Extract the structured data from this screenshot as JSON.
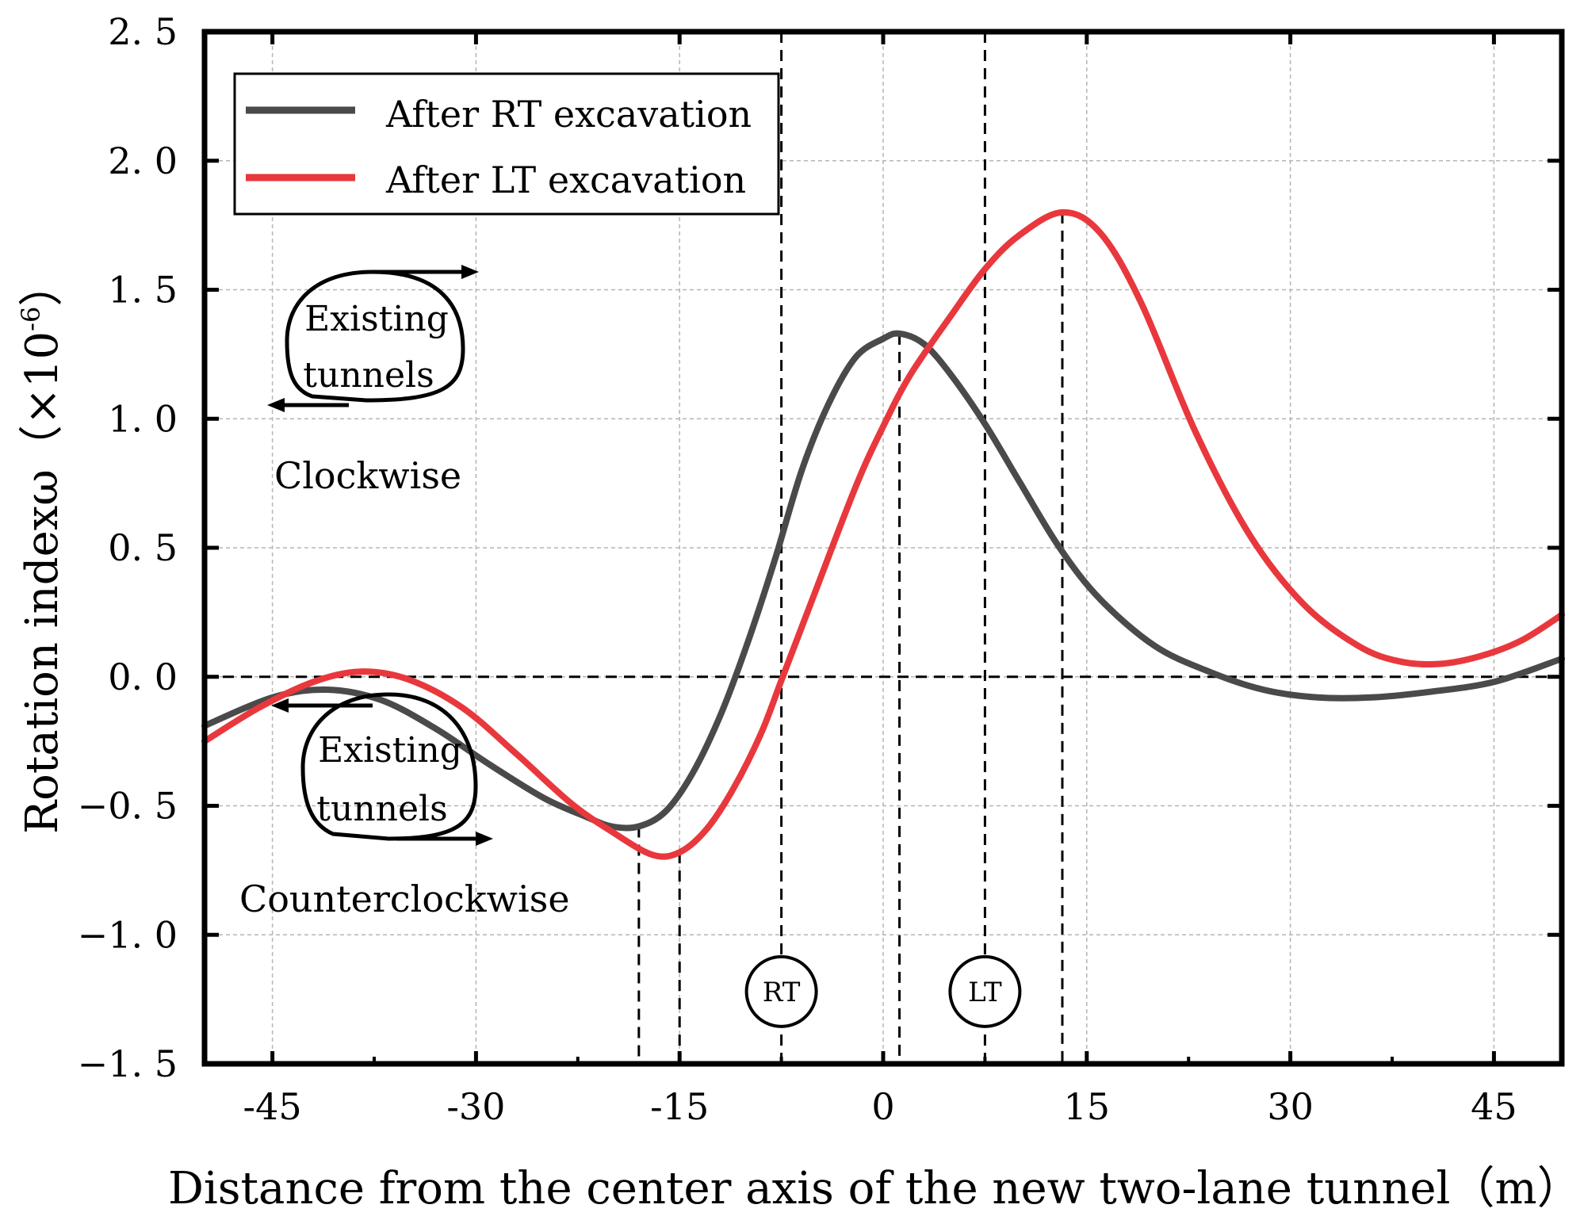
{
  "chart_data": {
    "type": "line",
    "xlabel": "Distance from the center axis of the new two-lane tunnel（m）",
    "ylabel_main": "Rotation indexω",
    "ylabel_unit_open": "（×10",
    "ylabel_unit_exp": "-6",
    "ylabel_unit_close": "）",
    "xlim": [
      -50,
      50
    ],
    "ylim": [
      -1.5,
      2.5
    ],
    "xticks": [
      -45,
      -30,
      -15,
      0,
      15,
      30,
      45
    ],
    "xtick_labels": [
      "-45",
      "-30",
      "-15",
      "0",
      "15",
      "30",
      "45"
    ],
    "yticks": [
      -1.5,
      -1.0,
      -0.5,
      0.0,
      0.5,
      1.0,
      1.5,
      2.0,
      2.5
    ],
    "ytick_labels": [
      "−1. 5",
      "−1. 0",
      "−0. 5",
      "0. 0",
      "0. 5",
      "1. 0",
      "1. 5",
      "2. 0",
      "2. 5"
    ],
    "grid": true,
    "legend_position": "top-left",
    "series": [
      {
        "name": "After RT excavation",
        "color": "#4a4a4a",
        "x": [
          -50,
          -45,
          -41,
          -37,
          -33,
          -29,
          -25,
          -22,
          -20,
          -18,
          -16,
          -14,
          -12,
          -10,
          -8,
          -6,
          -4,
          -2,
          0,
          1.2,
          3,
          5,
          7.5,
          10,
          13,
          16,
          20,
          24,
          28,
          32,
          36,
          40,
          45,
          50
        ],
        "y": [
          -0.19,
          -0.08,
          -0.05,
          -0.09,
          -0.2,
          -0.34,
          -0.47,
          -0.54,
          -0.58,
          -0.58,
          -0.52,
          -0.37,
          -0.15,
          0.13,
          0.45,
          0.8,
          1.06,
          1.24,
          1.31,
          1.33,
          1.29,
          1.17,
          0.98,
          0.76,
          0.5,
          0.3,
          0.12,
          0.02,
          -0.05,
          -0.08,
          -0.08,
          -0.06,
          -0.02,
          0.07
        ]
      },
      {
        "name": "After LT excavation",
        "color": "#e8383d",
        "x": [
          -50,
          -46,
          -42,
          -38.5,
          -35,
          -31,
          -27,
          -23,
          -20,
          -17,
          -15,
          -13,
          -11,
          -9,
          -7.4,
          -5,
          -2,
          0,
          2,
          5,
          7.5,
          10,
          13.2,
          16,
          19,
          23,
          27,
          31,
          35,
          38,
          41,
          44,
          47,
          50
        ],
        "y": [
          -0.25,
          -0.12,
          -0.02,
          0.02,
          -0.01,
          -0.12,
          -0.3,
          -0.49,
          -0.6,
          -0.69,
          -0.68,
          -0.59,
          -0.43,
          -0.22,
          0.0,
          0.33,
          0.74,
          0.97,
          1.17,
          1.4,
          1.58,
          1.71,
          1.8,
          1.72,
          1.45,
          0.95,
          0.55,
          0.28,
          0.12,
          0.06,
          0.05,
          0.08,
          0.14,
          0.24
        ]
      }
    ],
    "reference_lines": {
      "horizontal_y": 0.0,
      "vertical_full_x": [
        -7.5,
        7.5
      ],
      "vertical_drop": [
        {
          "x": -18,
          "from_y": -0.58
        },
        {
          "x": -15,
          "from_y": -0.68
        },
        {
          "x": 1.2,
          "from_y": 1.33
        },
        {
          "x": 13.2,
          "from_y": 1.8
        }
      ]
    },
    "tunnel_tags": [
      {
        "label": "RT",
        "x": -7.5,
        "y": -1.22
      },
      {
        "label": "LT",
        "x": 7.5,
        "y": -1.22
      }
    ],
    "annotations": {
      "upper_tunnel_line1": "Existing",
      "upper_tunnel_line2": "tunnels",
      "upper_direction": "Clockwise",
      "lower_tunnel_line1": "Existing",
      "lower_tunnel_line2": "tunnels",
      "lower_direction": "Counterclockwise"
    }
  }
}
